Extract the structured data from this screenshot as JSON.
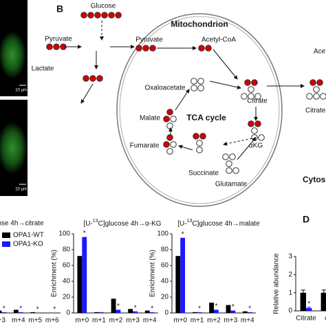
{
  "figure": {
    "panel_a": {
      "scale_bars": [
        "10 µm",
        "10 µm"
      ]
    },
    "panel_b": {
      "label": "B",
      "compartments": {
        "mitochondrion": "Mitochondrion",
        "cytosol": "Cytoso"
      },
      "cycle": "TCA cycle",
      "metabolites": {
        "glucose": "Glucose",
        "pyruvate_cyto": "Pyruvate",
        "lactate": "Lactate",
        "pyruvate_mito": "Pyruvate",
        "acetyl_coa": "Acetyl-CoA",
        "oxaloacetate": "Oxaloacetate",
        "citrate_mito": "Citrate",
        "malate": "Malate",
        "fumarate": "Fumarate",
        "akg": "αKG",
        "succinate": "Succinate",
        "glutamate": "Glutamate",
        "acetyl_cyto": "Ace",
        "citrate_cyto": "Citrate"
      }
    },
    "panel_d_label": "D"
  },
  "chart_data": [
    {
      "type": "bar",
      "title": "ose 4h→citrate",
      "categories": [
        "+3",
        "m+4",
        "m+5",
        "m+6"
      ],
      "ylim": [
        0,
        100
      ],
      "legend": "top-left",
      "series": [
        {
          "name": "OPA1-WT",
          "color": "#000000",
          "values": [
            3,
            4,
            1,
            0
          ]
        },
        {
          "name": "OPA1-KO",
          "color": "#1a1aff",
          "values": [
            1,
            1,
            0,
            0
          ],
          "significance": [
            "*",
            "*",
            "*",
            "*"
          ]
        }
      ]
    },
    {
      "type": "bar",
      "title": {
        "pre": "[U-",
        "sup": "13",
        "post": "C]glucose 4h→α-KG"
      },
      "y_label": "Enrichment (%)",
      "categories": [
        "m+0",
        "m+1",
        "m+2",
        "m+3",
        "m+4"
      ],
      "ylim": [
        0,
        100
      ],
      "yticks": [
        0,
        20,
        40,
        60,
        80,
        100
      ],
      "series": [
        {
          "color": "#000000",
          "values": [
            72,
            1,
            18,
            5,
            3
          ]
        },
        {
          "color": "#1a1aff",
          "values": [
            96,
            1,
            4,
            2,
            1
          ],
          "significance": [
            "*",
            null,
            "*",
            "*",
            "*"
          ]
        }
      ]
    },
    {
      "type": "bar",
      "title": {
        "pre": "[U-",
        "sup": "13",
        "post": "C]glucose 4h→malate"
      },
      "y_label": "Enrichment (%)",
      "categories": [
        "m+0",
        "m+1",
        "m+2",
        "m+3",
        "m+4"
      ],
      "ylim": [
        0,
        100
      ],
      "yticks": [
        0,
        20,
        40,
        60,
        80,
        100
      ],
      "series": [
        {
          "color": "#000000",
          "values": [
            72,
            1,
            13,
            10,
            2
          ]
        },
        {
          "color": "#1a1aff",
          "values": [
            95,
            1,
            4,
            3,
            1
          ],
          "significance": [
            "*",
            "*",
            "*",
            "*",
            "*"
          ]
        }
      ]
    },
    {
      "type": "bar",
      "y_label": "Relative abundance",
      "categories": [
        "Citrate",
        "α"
      ],
      "ylim": [
        0,
        3
      ],
      "yticks": [
        0,
        1,
        2,
        3
      ],
      "series": [
        {
          "color": "#000000",
          "values": [
            1.0,
            1.0
          ],
          "errors": [
            0.15,
            0.15
          ]
        },
        {
          "color": "#1a1aff",
          "values": [
            0.15,
            null
          ],
          "errors": [
            0.05,
            null
          ],
          "significance": [
            "*",
            null
          ]
        }
      ]
    }
  ]
}
